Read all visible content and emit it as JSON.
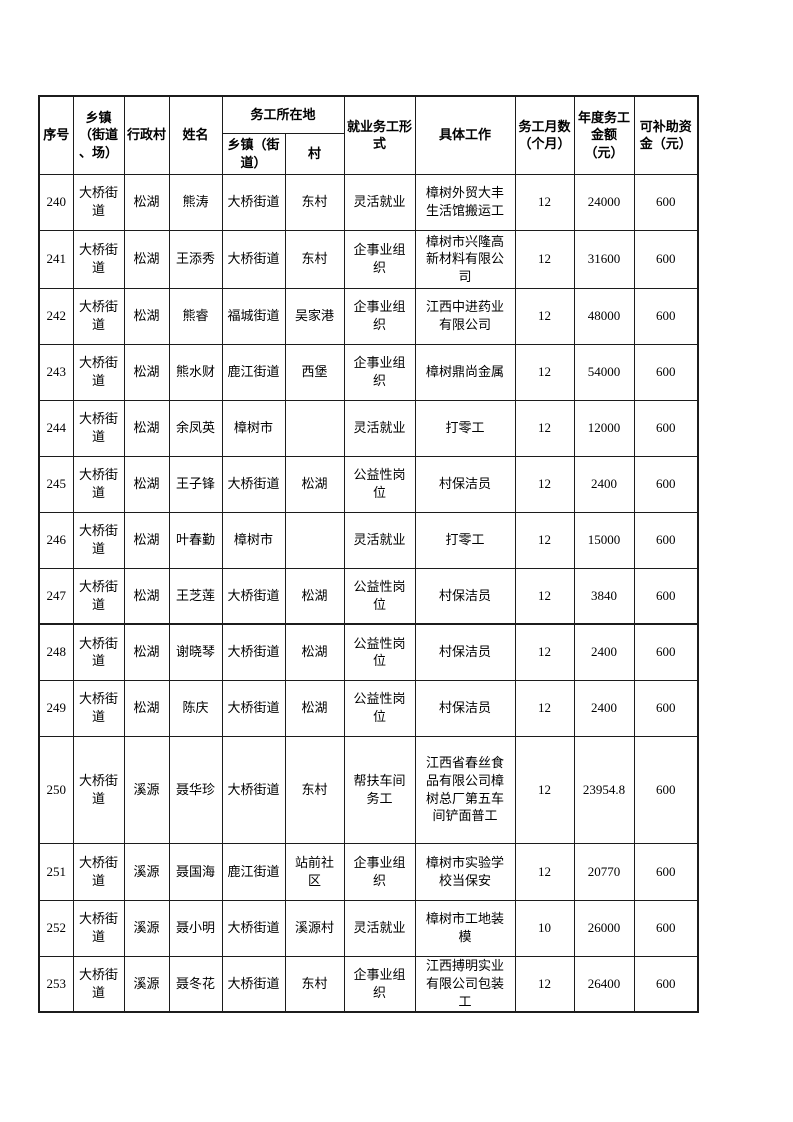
{
  "colors": {
    "text": "#000000",
    "border": "#1c1c1c",
    "page_background": "#ffffff"
  },
  "table": {
    "headers": {
      "seq": "序号",
      "township": "乡镇\n（街道\n、场）",
      "village": "行政村",
      "name": "姓名",
      "work_location": "务工所在地",
      "work_township": "乡镇（街\n道）",
      "work_village": "村",
      "employment_type": "就业务工形\n式",
      "job": "具体工作",
      "months": "务工月数\n（个月）",
      "annual_amount": "年度务工\n金额\n（元）",
      "subsidy": "可补助资\n金（元）"
    },
    "rows": [
      {
        "seq": "240",
        "township": "大桥街道",
        "village": "松湖",
        "name": "熊涛",
        "work_township": "大桥街道",
        "work_village": "东村",
        "type": "灵活就业",
        "job": "樟树外贸大丰生活馆搬运工",
        "months": "12",
        "amount": "24000",
        "subsidy": "600"
      },
      {
        "seq": "241",
        "township": "大桥街道",
        "village": "松湖",
        "name": "王添秀",
        "work_township": "大桥街道",
        "work_village": "东村",
        "type": "企事业组\n织",
        "job": "樟树市兴隆高新材料有限公司",
        "months": "12",
        "amount": "31600",
        "subsidy": "600"
      },
      {
        "seq": "242",
        "township": "大桥街道",
        "village": "松湖",
        "name": "熊睿",
        "work_township": "福城街道",
        "work_village": "吴家港",
        "type": "企事业组\n织",
        "job": "江西中进药业有限公司",
        "months": "12",
        "amount": "48000",
        "subsidy": "600"
      },
      {
        "seq": "243",
        "township": "大桥街道",
        "village": "松湖",
        "name": "熊水财",
        "work_township": "鹿江街道",
        "work_village": "西堡",
        "type": "企事业组\n织",
        "job": "樟树鼎尚金属",
        "months": "12",
        "amount": "54000",
        "subsidy": "600"
      },
      {
        "seq": "244",
        "township": "大桥街道",
        "village": "松湖",
        "name": "余凤英",
        "work_township": "樟树市",
        "work_village": "",
        "type": "灵活就业",
        "job": "打零工",
        "months": "12",
        "amount": "12000",
        "subsidy": "600"
      },
      {
        "seq": "245",
        "township": "大桥街道",
        "village": "松湖",
        "name": "王子锋",
        "work_township": "大桥街道",
        "work_village": "松湖",
        "type": "公益性岗\n位",
        "job": "村保洁员",
        "months": "12",
        "amount": "2400",
        "subsidy": "600"
      },
      {
        "seq": "246",
        "township": "大桥街道",
        "village": "松湖",
        "name": "叶春勤",
        "work_township": "樟树市",
        "work_village": "",
        "type": "灵活就业",
        "job": "打零工",
        "months": "12",
        "amount": "15000",
        "subsidy": "600"
      },
      {
        "seq": "247",
        "township": "大桥街道",
        "village": "松湖",
        "name": "王芝莲",
        "work_township": "大桥街道",
        "work_village": "松湖",
        "type": "公益性岗\n位",
        "job": "村保洁员",
        "months": "12",
        "amount": "3840",
        "subsidy": "600"
      },
      {
        "seq": "248",
        "township": "大桥街道",
        "village": "松湖",
        "name": "谢晓琴",
        "work_township": "大桥街道",
        "work_village": "松湖",
        "type": "公益性岗\n位",
        "job": "村保洁员",
        "months": "12",
        "amount": "2400",
        "subsidy": "600"
      },
      {
        "seq": "249",
        "township": "大桥街道",
        "village": "松湖",
        "name": "陈庆",
        "work_township": "大桥街道",
        "work_village": "松湖",
        "type": "公益性岗\n位",
        "job": "村保洁员",
        "months": "12",
        "amount": "2400",
        "subsidy": "600"
      },
      {
        "seq": "250",
        "township": "大桥街道",
        "village": "溪源",
        "name": "聂华珍",
        "work_township": "大桥街道",
        "work_village": "东村",
        "type": "帮扶车间\n务工",
        "job": "江西省春丝食品有限公司樟树总厂第五车间铲面普工",
        "months": "12",
        "amount": "23954.8",
        "subsidy": "600"
      },
      {
        "seq": "251",
        "township": "大桥街道",
        "village": "溪源",
        "name": "聂国海",
        "work_township": "鹿江街道",
        "work_village": "站前社区",
        "type": "企事业组\n织",
        "job": "樟树市实验学校当保安",
        "months": "12",
        "amount": "20770",
        "subsidy": "600"
      },
      {
        "seq": "252",
        "township": "大桥街道",
        "village": "溪源",
        "name": "聂小明",
        "work_township": "大桥街道",
        "work_village": "溪源村",
        "type": "灵活就业",
        "job": "樟树市工地装模",
        "months": "10",
        "amount": "26000",
        "subsidy": "600"
      },
      {
        "seq": "253",
        "township": "大桥街道",
        "village": "溪源",
        "name": "聂冬花",
        "work_township": "大桥街道",
        "work_village": "东村",
        "type": "企事业组\n织",
        "job": "江西搏明实业有限公司包装工",
        "months": "12",
        "amount": "26400",
        "subsidy": "600"
      }
    ]
  }
}
